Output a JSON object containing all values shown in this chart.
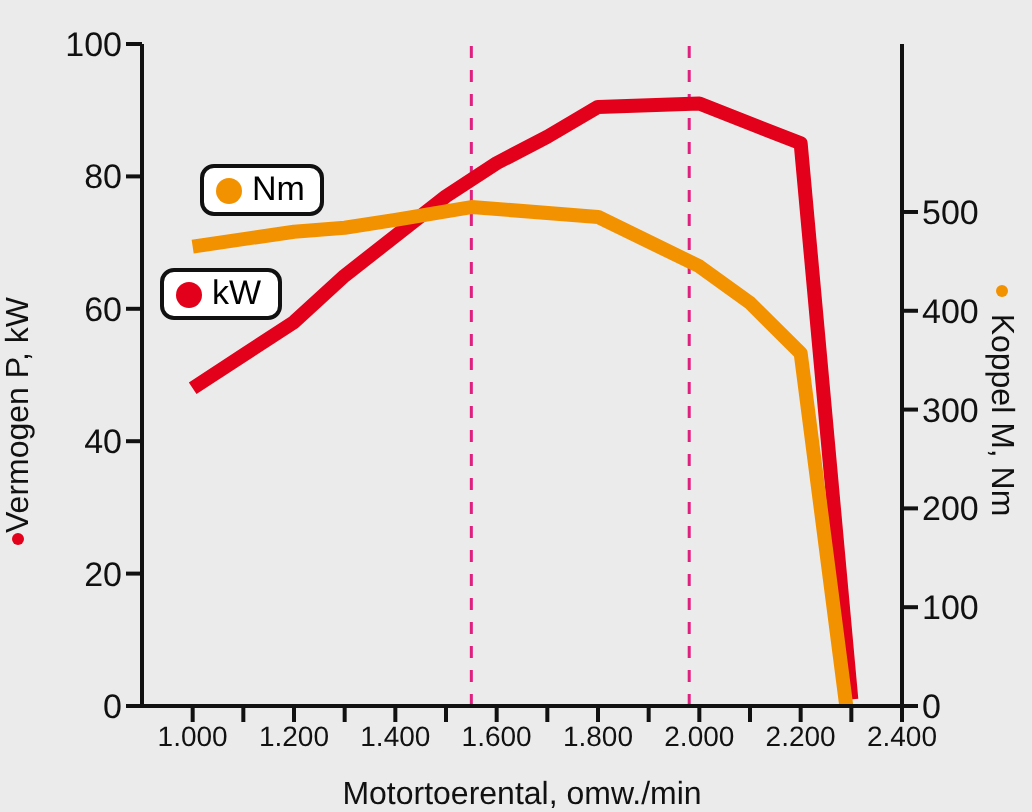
{
  "chart_data": {
    "type": "line",
    "xlabel": "Motortoerental, omw./min",
    "ylabel": "Vermogen P, kW",
    "y2label": "Koppel M, Nm",
    "xlim": [
      900,
      2400
    ],
    "xticks": [
      {
        "value": 1000,
        "label": "1.000"
      },
      {
        "value": 1100,
        "label": null
      },
      {
        "value": 1200,
        "label": "1.200"
      },
      {
        "value": 1300,
        "label": null
      },
      {
        "value": 1400,
        "label": "1.400"
      },
      {
        "value": 1500,
        "label": null
      },
      {
        "value": 1600,
        "label": "1.600"
      },
      {
        "value": 1700,
        "label": null
      },
      {
        "value": 1800,
        "label": "1.800"
      },
      {
        "value": 1900,
        "label": null
      },
      {
        "value": 2000,
        "label": "2.000"
      },
      {
        "value": 2100,
        "label": null
      },
      {
        "value": 2200,
        "label": "2.200"
      },
      {
        "value": 2300,
        "label": null
      },
      {
        "value": 2400,
        "label": "2.400"
      }
    ],
    "ylim": [
      0,
      100
    ],
    "yticks": [
      0,
      20,
      40,
      60,
      80,
      100
    ],
    "y2lim": [
      0,
      670
    ],
    "y2ticks": [
      0,
      100,
      200,
      300,
      400,
      500
    ],
    "series": [
      {
        "name": "kW",
        "color": "#e2001a",
        "x": [
          1000,
          1100,
          1200,
          1300,
          1400,
          1500,
          1600,
          1700,
          1800,
          2000,
          2200,
          2300
        ],
        "values": [
          48,
          53,
          58,
          65,
          71,
          77,
          82,
          86,
          90.5,
          91,
          85,
          1
        ]
      },
      {
        "name": "Nm",
        "color": "#f39200",
        "axis": "y2",
        "x": [
          1000,
          1200,
          1300,
          1400,
          1550,
          1800,
          2000,
          2100,
          2200,
          2290
        ],
        "values": [
          465,
          480,
          484,
          492,
          505,
          495,
          445,
          408,
          357,
          0
        ]
      }
    ],
    "ref_lines": [
      {
        "axis": "x",
        "value": 1550,
        "color": "#e0207f",
        "line_style": "dashed"
      },
      {
        "axis": "x",
        "value": 1980,
        "color": "#e0207f",
        "line_style": "dashed"
      }
    ],
    "legend": "left",
    "grid": false
  }
}
